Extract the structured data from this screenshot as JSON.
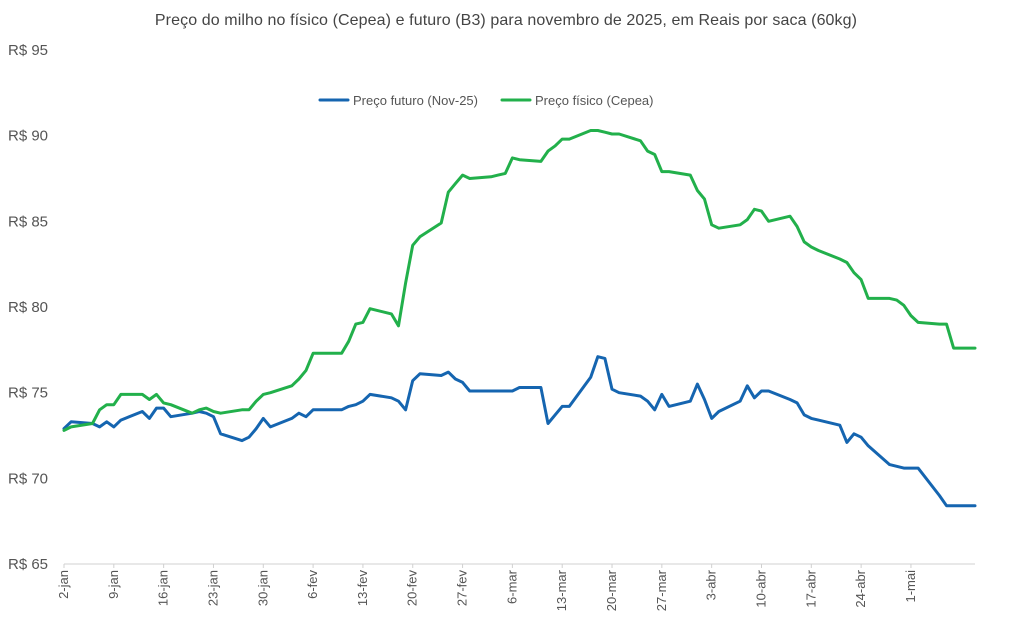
{
  "chart_data": {
    "type": "line",
    "title": "Preço do milho no físico (Cepea) e futuro (B3) para novembro de 2025, em Reais por saca (60kg)",
    "xlabel": "",
    "ylabel": "",
    "ylim": [
      65,
      95
    ],
    "ytick_values": [
      65,
      70,
      75,
      80,
      85,
      90,
      95
    ],
    "ytick_labels": [
      "R$ 65",
      "R$ 70",
      "R$ 75",
      "R$ 80",
      "R$ 85",
      "R$ 90",
      "R$ 95"
    ],
    "xlim": [
      2,
      130
    ],
    "x_unit": "day of year (2025)",
    "xtick_values": [
      2,
      9,
      16,
      23,
      30,
      37,
      44,
      51,
      58,
      65,
      72,
      79,
      86,
      93,
      100,
      107,
      114,
      121
    ],
    "xtick_labels": [
      "2-jan",
      "9-jan",
      "16-jan",
      "23-jan",
      "30-jan",
      "6-fev",
      "13-fev",
      "20-fev",
      "27-fev",
      "6-mar",
      "13-mar",
      "20-mar",
      "27-mar",
      "3-abr",
      "10-abr",
      "17-abr",
      "24-abr",
      "1-mai"
    ],
    "legend_position": "top-center",
    "grid": false,
    "series": [
      {
        "name": "Preço futuro (Nov-25)",
        "color": "#1565b0",
        "x": [
          2,
          3,
          6,
          7,
          8,
          9,
          10,
          13,
          14,
          15,
          16,
          17,
          20,
          21,
          22,
          23,
          24,
          27,
          28,
          29,
          30,
          31,
          34,
          35,
          36,
          37,
          38,
          41,
          42,
          43,
          44,
          45,
          48,
          49,
          50,
          51,
          52,
          55,
          56,
          57,
          58,
          59,
          62,
          63,
          64,
          65,
          66,
          69,
          70,
          71,
          72,
          73,
          76,
          77,
          78,
          79,
          80,
          83,
          84,
          85,
          86,
          87,
          90,
          91,
          92,
          93,
          94,
          97,
          98,
          99,
          100,
          101,
          104,
          105,
          106,
          107,
          108,
          111,
          112,
          113,
          114,
          115,
          118,
          119,
          120,
          121,
          122,
          125,
          126,
          127,
          128,
          129,
          130
        ],
        "y": [
          72.9,
          73.3,
          73.2,
          73.0,
          73.3,
          73.0,
          73.4,
          73.9,
          73.5,
          74.1,
          74.1,
          73.6,
          73.8,
          73.9,
          73.8,
          73.6,
          72.6,
          72.2,
          72.4,
          72.9,
          73.5,
          73.0,
          73.5,
          73.8,
          73.6,
          74.0,
          74.0,
          74.0,
          74.2,
          74.3,
          74.5,
          74.9,
          74.7,
          74.5,
          74.0,
          75.7,
          76.1,
          76.0,
          76.2,
          75.8,
          75.6,
          75.1,
          75.1,
          75.1,
          75.1,
          75.1,
          75.3,
          75.3,
          73.2,
          73.7,
          74.2,
          74.2,
          75.9,
          77.1,
          77.0,
          75.2,
          75.0,
          74.8,
          74.5,
          74.0,
          74.9,
          74.2,
          74.5,
          75.5,
          74.6,
          73.5,
          73.9,
          74.5,
          75.4,
          74.7,
          75.1,
          75.1,
          74.6,
          74.4,
          73.7,
          73.5,
          73.4,
          73.1,
          72.1,
          72.6,
          72.4,
          71.9,
          70.8,
          70.7,
          70.6,
          70.6,
          70.6,
          69.0,
          68.4,
          68.4,
          68.4,
          68.4,
          68.4
        ]
      },
      {
        "name": "Preço físico (Cepea)",
        "color": "#22b04b",
        "x": [
          2,
          3,
          6,
          7,
          8,
          9,
          10,
          13,
          14,
          15,
          16,
          17,
          20,
          21,
          22,
          23,
          24,
          27,
          28,
          29,
          30,
          31,
          34,
          35,
          36,
          37,
          38,
          41,
          42,
          43,
          44,
          45,
          48,
          49,
          50,
          51,
          52,
          55,
          56,
          57,
          58,
          59,
          62,
          63,
          64,
          65,
          66,
          69,
          70,
          71,
          72,
          73,
          76,
          77,
          78,
          79,
          80,
          83,
          84,
          85,
          86,
          87,
          90,
          91,
          92,
          93,
          94,
          97,
          98,
          99,
          100,
          101,
          104,
          105,
          106,
          107,
          108,
          111,
          112,
          113,
          114,
          115,
          118,
          119,
          120,
          121,
          122,
          125,
          126,
          127,
          128,
          129,
          130
        ],
        "y": [
          72.8,
          73.0,
          73.2,
          74.0,
          74.3,
          74.3,
          74.9,
          74.9,
          74.6,
          74.9,
          74.4,
          74.3,
          73.8,
          74.0,
          74.1,
          73.9,
          73.8,
          74.0,
          74.0,
          74.5,
          74.9,
          75.0,
          75.4,
          75.8,
          76.3,
          77.3,
          77.3,
          77.3,
          78.0,
          79.0,
          79.1,
          79.9,
          79.6,
          78.9,
          81.4,
          83.6,
          84.1,
          84.9,
          86.7,
          87.2,
          87.7,
          87.5,
          87.6,
          87.7,
          87.8,
          88.7,
          88.6,
          88.5,
          89.1,
          89.4,
          89.8,
          89.8,
          90.3,
          90.3,
          90.2,
          90.1,
          90.1,
          89.7,
          89.1,
          88.9,
          87.9,
          87.9,
          87.7,
          86.8,
          86.3,
          84.8,
          84.6,
          84.8,
          85.1,
          85.7,
          85.6,
          85.0,
          85.3,
          84.7,
          83.8,
          83.5,
          83.3,
          82.8,
          82.6,
          82.0,
          81.6,
          80.5,
          80.5,
          80.4,
          80.1,
          79.5,
          79.1,
          79.0,
          79.0,
          77.6,
          77.6,
          77.6,
          77.6
        ]
      }
    ]
  }
}
